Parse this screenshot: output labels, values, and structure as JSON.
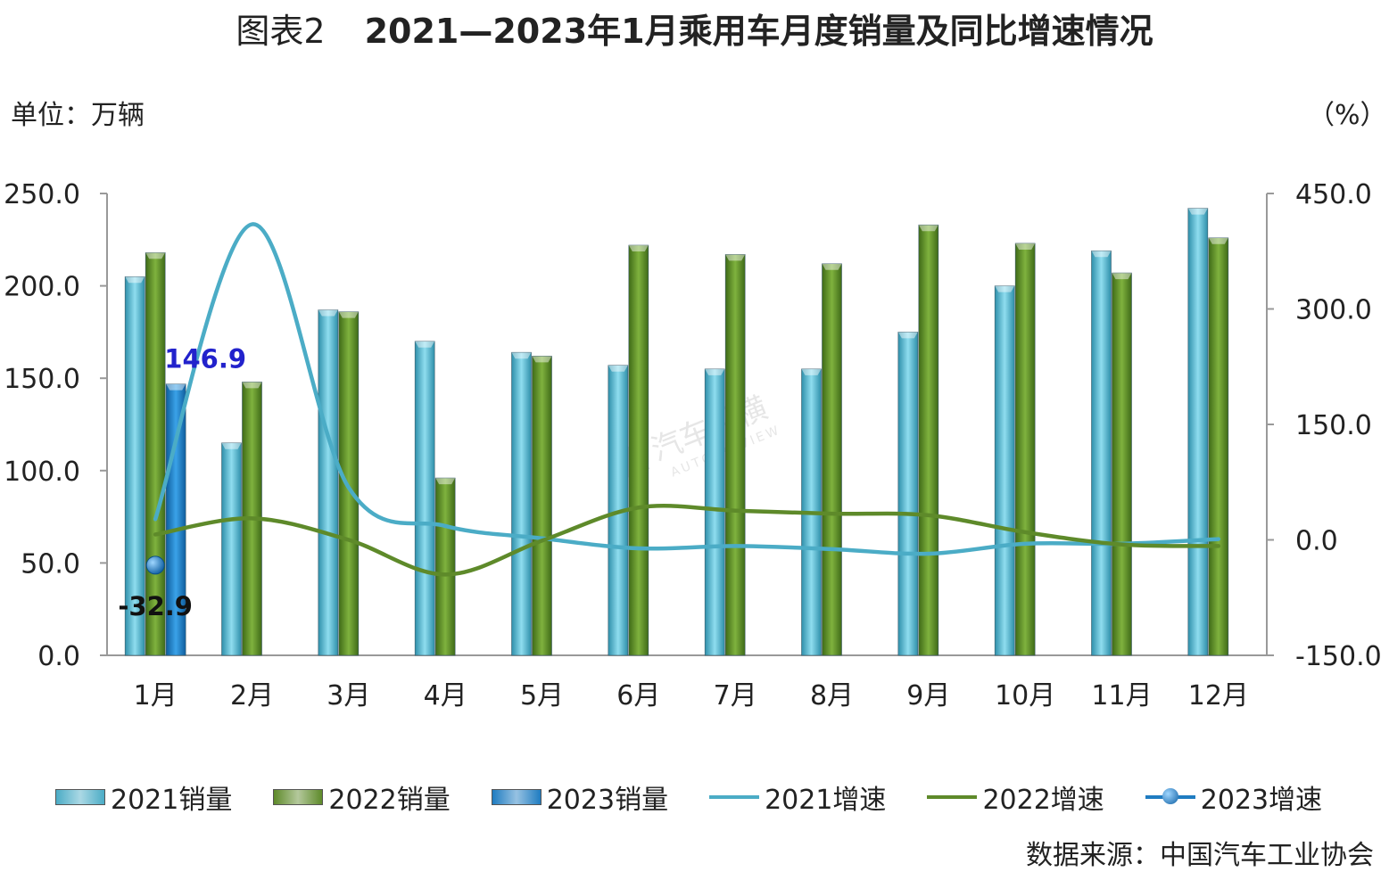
{
  "title": {
    "prefix": "图表2",
    "main": "2021—2023年1月乘用车月度销量及同比增速情况"
  },
  "unit_left": "单位：万辆",
  "unit_right": "（%）",
  "source": "数据来源：中国汽车工业协会",
  "watermark": {
    "cn": "汽车纵横",
    "en": "AUTO REVIEW"
  },
  "chart_data": {
    "type": "bar",
    "categories": [
      "1月",
      "2月",
      "3月",
      "4月",
      "5月",
      "6月",
      "7月",
      "8月",
      "9月",
      "10月",
      "11月",
      "12月"
    ],
    "y_left": {
      "range": [
        0,
        250
      ],
      "ticks": [
        "0.0",
        "50.0",
        "100.0",
        "150.0",
        "200.0",
        "250.0"
      ]
    },
    "y_right": {
      "range": [
        -150,
        450
      ],
      "ticks": [
        "-150.0",
        "0.0",
        "150.0",
        "300.0",
        "450.0"
      ]
    },
    "series": [
      {
        "name": "2021销量",
        "type": "bar",
        "axis": "left",
        "color": "#4BACC6",
        "values": [
          205,
          115,
          187,
          170,
          164,
          157,
          155,
          155,
          175,
          200,
          219,
          242
        ]
      },
      {
        "name": "2022销量",
        "type": "bar",
        "axis": "left",
        "color": "#5E8A2A",
        "values": [
          218,
          148,
          186,
          96,
          162,
          222,
          217,
          212,
          233,
          223,
          207,
          226
        ]
      },
      {
        "name": "2023销量",
        "type": "bar",
        "axis": "left",
        "color": "#1F7CC1",
        "values": [
          146.9,
          null,
          null,
          null,
          null,
          null,
          null,
          null,
          null,
          null,
          null,
          null
        ]
      },
      {
        "name": "2021增速",
        "type": "line",
        "axis": "right",
        "color": "#4BACC6",
        "values": [
          27,
          410,
          68,
          18,
          2,
          -11,
          -8,
          -12,
          -18,
          -5,
          -5,
          1
        ]
      },
      {
        "name": "2022增速",
        "type": "line",
        "axis": "right",
        "color": "#5E8A2A",
        "values": [
          7,
          28,
          0,
          -45,
          -1,
          42,
          38,
          34,
          32,
          10,
          -6,
          -8
        ]
      },
      {
        "name": "2023增速",
        "type": "marker",
        "axis": "right",
        "color": "#1F7CC1",
        "values": [
          -32.9,
          null,
          null,
          null,
          null,
          null,
          null,
          null,
          null,
          null,
          null,
          null
        ]
      }
    ],
    "data_labels": [
      {
        "series": "2023销量",
        "category": "1月",
        "text": "146.9",
        "color": "#2222CC"
      },
      {
        "series": "2023增速",
        "category": "1月",
        "text": "-32.9",
        "color": "#111111"
      }
    ],
    "legend": "bottom",
    "grid": false
  }
}
